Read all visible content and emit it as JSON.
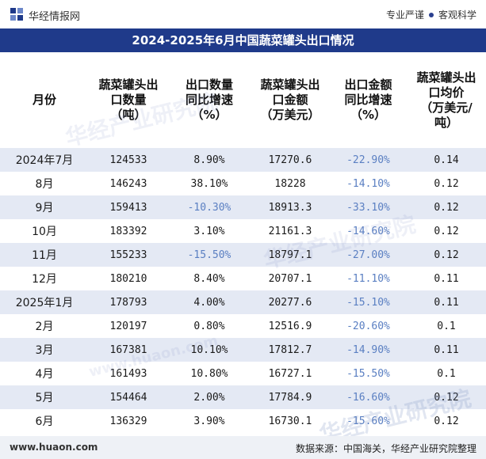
{
  "header": {
    "brand": "华经情报网",
    "tags": [
      "专业严谨",
      "客观科学"
    ]
  },
  "title": "2024-2025年6月中国蔬菜罐头出口情况",
  "columns": [
    [
      "月份"
    ],
    [
      "蔬菜罐头出",
      "口数量",
      "（吨）"
    ],
    [
      "出口数量",
      "同比增速",
      "（%）"
    ],
    [
      "蔬菜罐头出",
      "口金额",
      "（万美元）"
    ],
    [
      "出口金额",
      "同比增速",
      "（%）"
    ],
    [
      "蔬菜罐头出",
      "口均价",
      "（万美元/",
      "吨）"
    ]
  ],
  "rows": [
    {
      "month": "2024年7月",
      "qty": "124533",
      "qty_yoy": "8.90%",
      "amt": "17270.6",
      "amt_yoy": "-22.90%",
      "price": "0.14"
    },
    {
      "month": "8月",
      "qty": "146243",
      "qty_yoy": "38.10%",
      "amt": "18228",
      "amt_yoy": "-14.10%",
      "price": "0.12"
    },
    {
      "month": "9月",
      "qty": "159413",
      "qty_yoy": "-10.30%",
      "amt": "18913.3",
      "amt_yoy": "-33.10%",
      "price": "0.12"
    },
    {
      "month": "10月",
      "qty": "183392",
      "qty_yoy": "3.10%",
      "amt": "21161.3",
      "amt_yoy": "-14.60%",
      "price": "0.12"
    },
    {
      "month": "11月",
      "qty": "155233",
      "qty_yoy": "-15.50%",
      "amt": "18797.1",
      "amt_yoy": "-27.00%",
      "price": "0.12"
    },
    {
      "month": "12月",
      "qty": "180210",
      "qty_yoy": "8.40%",
      "amt": "20707.1",
      "amt_yoy": "-11.10%",
      "price": "0.11"
    },
    {
      "month": "2025年1月",
      "qty": "178793",
      "qty_yoy": "4.00%",
      "amt": "20277.6",
      "amt_yoy": "-15.10%",
      "price": "0.11"
    },
    {
      "month": "2月",
      "qty": "120197",
      "qty_yoy": "0.80%",
      "amt": "12516.9",
      "amt_yoy": "-20.60%",
      "price": "0.1"
    },
    {
      "month": "3月",
      "qty": "167381",
      "qty_yoy": "10.10%",
      "amt": "17812.7",
      "amt_yoy": "-14.90%",
      "price": "0.11"
    },
    {
      "month": "4月",
      "qty": "161493",
      "qty_yoy": "10.80%",
      "amt": "16727.1",
      "amt_yoy": "-15.50%",
      "price": "0.1"
    },
    {
      "month": "5月",
      "qty": "154464",
      "qty_yoy": "2.00%",
      "amt": "17784.9",
      "amt_yoy": "-16.60%",
      "price": "0.12"
    },
    {
      "month": "6月",
      "qty": "136329",
      "qty_yoy": "3.90%",
      "amt": "16730.1",
      "amt_yoy": "-15.60%",
      "price": "0.12"
    }
  ],
  "watermarks": [
    "华经产业研究院",
    "www.huaon.com"
  ],
  "footer": {
    "site": "www.huaon.com",
    "source": "数据来源：中国海关，华经产业研究院整理"
  },
  "colors": {
    "title_bg": "#1f3a8a",
    "stripe": "#e4e9f4",
    "negative": "#5a7fc2"
  }
}
